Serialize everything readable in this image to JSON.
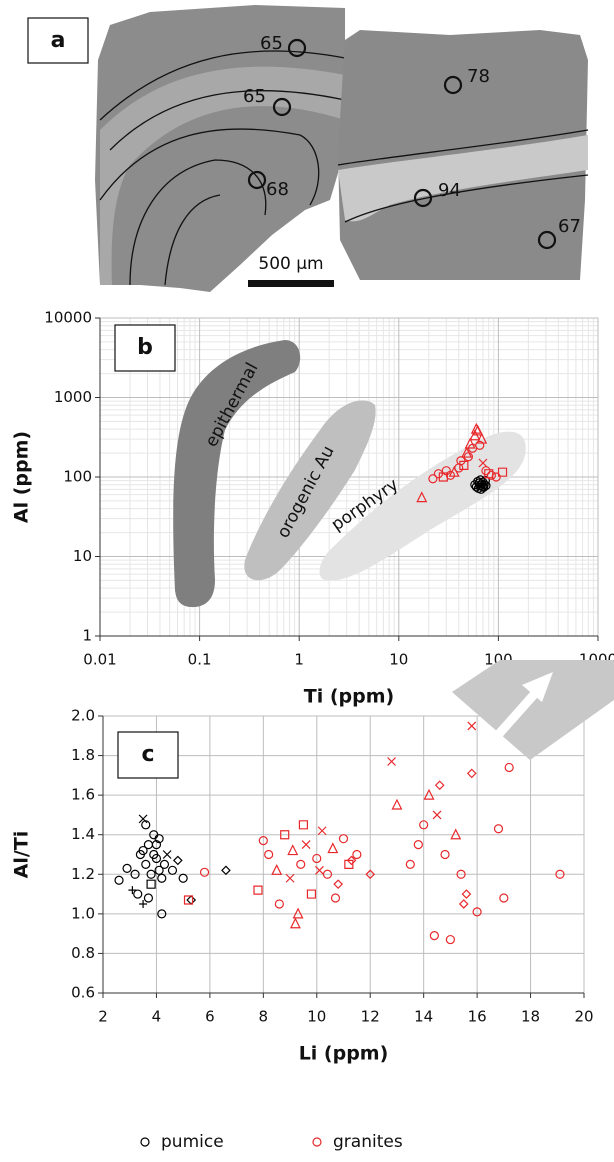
{
  "panel_a": {
    "label": "a",
    "spot_values": [
      65,
      65,
      68,
      78,
      94,
      67
    ],
    "scale_bar": "500 µm"
  },
  "chart_data": [
    {
      "type": "scatter",
      "panel_label": "b",
      "x_label": "Ti (ppm)",
      "y_label": "Al (ppm)",
      "log_x": true,
      "log_y": true,
      "grid": true,
      "minor_grid": true,
      "xlim": [
        0.01,
        1000
      ],
      "ylim": [
        1,
        10000
      ],
      "xticks": [
        0.01,
        0.1,
        1,
        10,
        100,
        1000
      ],
      "yticks": [
        1,
        10,
        100,
        1000,
        10000
      ],
      "fields": [
        "epithermal",
        "orogenic Au",
        "porphyry"
      ],
      "series": [
        {
          "color": "#000000",
          "x": [
            58,
            60,
            62,
            63,
            64,
            65,
            66,
            67,
            68,
            69,
            70,
            71,
            72,
            74,
            75
          ],
          "values": [
            80,
            75,
            88,
            72,
            84,
            78,
            92,
            70,
            82,
            76,
            86,
            74,
            80,
            90,
            78
          ],
          "markers": [
            "circle",
            "circle",
            "circle",
            "circle",
            "circle",
            "circle",
            "circle",
            "circle",
            "circle",
            "circle",
            "circle",
            "circle",
            "circle",
            "circle",
            "circle"
          ]
        },
        {
          "color": "#e8282b",
          "x": [
            17,
            22,
            25,
            28,
            30,
            33,
            36,
            40,
            42,
            45,
            48,
            50,
            52,
            55,
            58,
            60,
            62,
            65,
            68,
            70,
            75,
            80,
            85,
            95,
            110
          ],
          "values": [
            55,
            95,
            110,
            100,
            120,
            105,
            115,
            130,
            160,
            140,
            200,
            180,
            260,
            230,
            330,
            400,
            380,
            250,
            300,
            150,
            120,
            110,
            105,
            100,
            115
          ],
          "markers": [
            "triangle",
            "circle",
            "circle",
            "square",
            "circle",
            "circle",
            "triangle",
            "circle",
            "circle",
            "square",
            "triangle",
            "circle",
            "triangle",
            "circle",
            "triangle",
            "triangle",
            "triangle",
            "circle",
            "triangle",
            "x",
            "circle",
            "square",
            "circle",
            "circle",
            "square"
          ]
        }
      ]
    },
    {
      "type": "scatter",
      "panel_label": "c",
      "x_label": "Li (ppm)",
      "y_label": "Al/Ti",
      "grid": true,
      "legend": "bottom",
      "xlim": [
        2,
        20
      ],
      "ylim": [
        0.6,
        2.0
      ],
      "xticks": [
        2,
        4,
        6,
        8,
        10,
        12,
        14,
        16,
        18,
        20
      ],
      "yticks": [
        0.6,
        0.8,
        {
          "value": 1,
          "label": "1.0"
        },
        1.2,
        1.4,
        1.6,
        1.8,
        {
          "value": 2,
          "label": "2.0"
        }
      ],
      "series": [
        {
          "name": "pumice",
          "color": "#000000",
          "x": [
            3.2,
            3.4,
            3.5,
            3.6,
            3.7,
            3.8,
            3.9,
            4.0,
            4.1,
            4.2,
            3.3,
            3.5,
            3.7,
            3.9,
            4.1,
            4.3,
            3.6,
            3.8,
            4.0,
            4.4,
            4.6,
            4.8,
            5.0,
            5.3,
            2.6,
            2.9,
            3.1,
            3.5,
            4.2,
            6.6
          ],
          "values": [
            1.2,
            1.3,
            1.48,
            1.25,
            1.35,
            1.15,
            1.4,
            1.28,
            1.22,
            1.18,
            1.1,
            1.32,
            1.08,
            1.3,
            1.38,
            1.25,
            1.45,
            1.2,
            1.35,
            1.3,
            1.22,
            1.27,
            1.18,
            1.07,
            1.17,
            1.23,
            1.12,
            1.05,
            1.0,
            1.22
          ],
          "markers": [
            "circle",
            "circle",
            "x",
            "circle",
            "circle",
            "square",
            "circle",
            "circle",
            "circle",
            "circle",
            "circle",
            "circle",
            "circle",
            "circle",
            "circle",
            "circle",
            "circle",
            "circle",
            "circle",
            "x",
            "circle",
            "diamond",
            "circle",
            "diamond",
            "circle",
            "circle",
            "plus",
            "plus",
            "circle",
            "diamond"
          ]
        },
        {
          "name": "granites",
          "color": "#e8282b",
          "x": [
            5.2,
            5.8,
            7.8,
            8.2,
            8.5,
            8.8,
            9.0,
            9.2,
            9.4,
            9.6,
            9.8,
            10.0,
            10.2,
            10.4,
            10.6,
            10.8,
            11.0,
            11.2,
            11.5,
            12.0,
            8.6,
            9.1,
            9.5,
            10.1,
            10.7,
            11.3,
            9.3,
            8.0,
            12.8,
            13.0,
            13.5,
            14.0,
            14.2,
            14.4,
            14.6,
            14.8,
            15.0,
            15.2,
            15.4,
            15.6,
            15.8,
            16.0,
            13.8,
            14.5,
            15.5,
            16.8,
            17.0,
            17.2,
            19.1,
            15.8
          ],
          "values": [
            1.07,
            1.21,
            1.12,
            1.3,
            1.22,
            1.4,
            1.18,
            0.95,
            1.25,
            1.35,
            1.1,
            1.28,
            1.42,
            1.2,
            1.33,
            1.15,
            1.38,
            1.25,
            1.3,
            1.2,
            1.05,
            1.32,
            1.45,
            1.22,
            1.08,
            1.27,
            1.0,
            1.37,
            1.77,
            1.55,
            1.25,
            1.45,
            1.6,
            0.89,
            1.65,
            1.3,
            0.87,
            1.4,
            1.2,
            1.1,
            1.71,
            1.01,
            1.35,
            1.5,
            1.05,
            1.43,
            1.08,
            1.74,
            1.2,
            1.95
          ],
          "markers": [
            "square",
            "circle",
            "square",
            "circle",
            "triangle",
            "square",
            "x",
            "triangle",
            "circle",
            "x",
            "square",
            "circle",
            "x",
            "circle",
            "triangle",
            "diamond",
            "circle",
            "square",
            "circle",
            "diamond",
            "circle",
            "triangle",
            "square",
            "x",
            "circle",
            "diamond",
            "triangle",
            "circle",
            "x",
            "triangle",
            "circle",
            "circle",
            "triangle",
            "circle",
            "diamond",
            "circle",
            "circle",
            "triangle",
            "circle",
            "diamond",
            "diamond",
            "circle",
            "circle",
            "x",
            "diamond",
            "circle",
            "circle",
            "circle",
            "circle",
            "x"
          ]
        }
      ]
    }
  ]
}
